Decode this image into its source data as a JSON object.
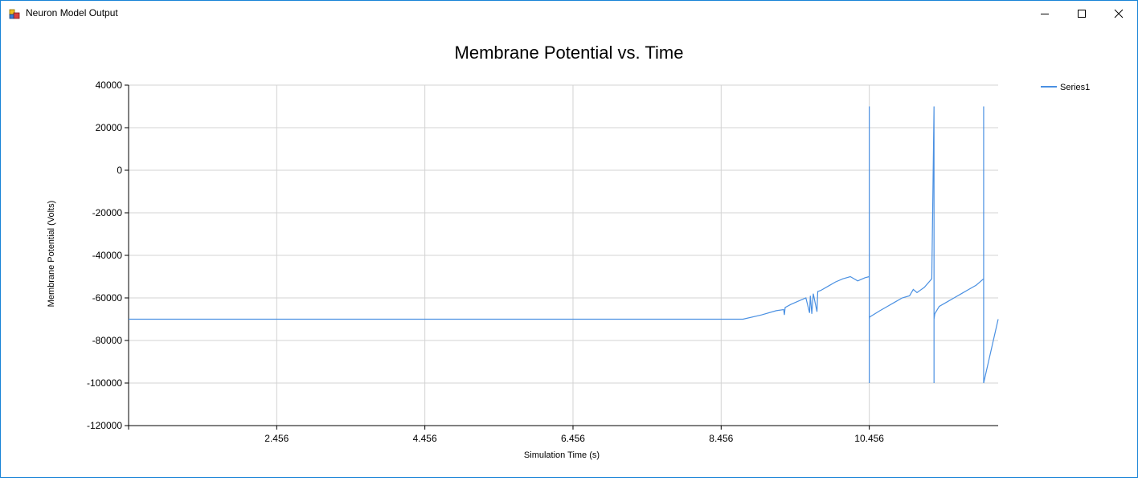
{
  "window": {
    "title": "Neuron Model Output"
  },
  "icons": {
    "app": "app-window-icon",
    "minimize": "minimize-icon",
    "maximize": "maximize-icon",
    "close": "close-icon"
  },
  "chart_data": {
    "type": "line",
    "title": "Membrane Potential vs. Time",
    "xlabel": "Simulation Time (s)",
    "ylabel": "Membrane Potential (Volts)",
    "xlim": [
      0.456,
      12.196
    ],
    "ylim": [
      -120000,
      40000
    ],
    "x_ticks": [
      2.456,
      4.456,
      6.456,
      8.456,
      10.456
    ],
    "x_tick_labels": [
      "2.456",
      "4.456",
      "6.456",
      "8.456",
      "10.456"
    ],
    "y_ticks": [
      40000,
      20000,
      0,
      -20000,
      -40000,
      -60000,
      -80000,
      -100000,
      -120000
    ],
    "y_tick_labels": [
      "40000",
      "20000",
      "0",
      "-20000",
      "-40000",
      "-60000",
      "-80000",
      "-100000",
      "-120000"
    ],
    "grid": true,
    "legend_position": "top-right",
    "series": [
      {
        "name": "Series1",
        "color": "#4a90e2",
        "x": [
          0.456,
          2.456,
          4.456,
          6.456,
          7.456,
          8.456,
          8.75,
          9.0,
          9.2,
          9.3,
          9.31,
          9.32,
          9.4,
          9.5,
          9.6,
          9.65,
          9.66,
          9.68,
          9.7,
          9.75,
          9.76,
          9.8,
          9.9,
          10.0,
          10.1,
          10.2,
          10.3,
          10.4,
          10.456,
          10.456,
          10.456,
          10.456,
          10.46,
          10.6,
          10.7,
          10.8,
          10.9,
          11.0,
          11.05,
          11.1,
          11.2,
          11.3,
          11.33,
          11.33,
          11.33,
          11.34,
          11.4,
          11.5,
          11.6,
          11.7,
          11.8,
          11.9,
          12.0,
          12.0,
          12.0,
          12.196
        ],
        "y": [
          -70000,
          -70000,
          -70000,
          -70000,
          -70000,
          -70000,
          -70000,
          -68000,
          -66000,
          -65500,
          -68000,
          -64500,
          -63000,
          -61500,
          -60000,
          -67000,
          -59000,
          -67500,
          -58000,
          -66500,
          -57000,
          -56500,
          -54500,
          -52500,
          -51000,
          -50000,
          -52000,
          -50500,
          -50000,
          30000,
          -100000,
          -70000,
          -69000,
          -66000,
          -64000,
          -62000,
          -60000,
          -59000,
          -56000,
          -57500,
          -55000,
          -51000,
          30000,
          -100000,
          -70000,
          -67500,
          -64000,
          -62000,
          -60000,
          -58000,
          -56000,
          -54000,
          -51000,
          30000,
          -100000,
          -70000
        ]
      }
    ]
  }
}
